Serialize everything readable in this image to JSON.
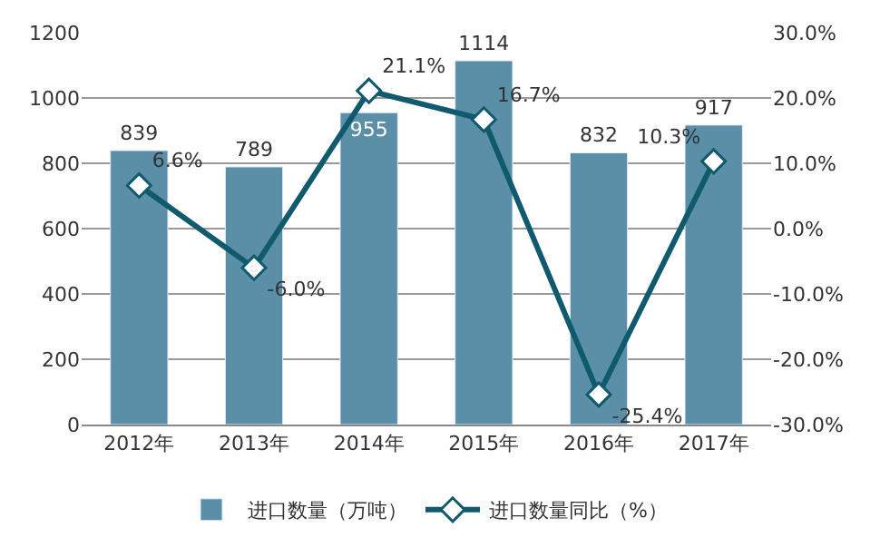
{
  "chart_data": {
    "type": "bar",
    "categories": [
      "2012年",
      "2013年",
      "2014年",
      "2015年",
      "2016年",
      "2017年"
    ],
    "series": [
      {
        "name": "进口数量（万吨）",
        "color": "#5b8fa8",
        "values": [
          839,
          789,
          955,
          1114,
          832,
          917
        ],
        "value_labels": [
          "839",
          "789",
          "955",
          "1114",
          "832",
          "917"
        ]
      },
      {
        "name": "进口数量同比（%）",
        "type": "line",
        "axis": "y2",
        "color": "#105a6e",
        "marker": "diamond",
        "values": [
          6.6,
          -6.0,
          21.1,
          16.7,
          -25.4,
          10.3
        ],
        "value_labels": [
          "6.6%",
          "-6.0%",
          "21.1%",
          "16.7%",
          "-25.4%",
          "10.3%"
        ]
      }
    ],
    "ylim": [
      0,
      1200
    ],
    "yticks": [
      0,
      200,
      400,
      600,
      800,
      1000,
      1200
    ],
    "y2lim": [
      -30,
      30
    ],
    "y2ticks": [
      {
        "value": -30,
        "label": "-30.0%"
      },
      {
        "value": -20,
        "label": "-20.0%"
      },
      {
        "value": -10,
        "label": "-10.0%"
      },
      {
        "value": 0,
        "label": "0.0%"
      },
      {
        "value": 10,
        "label": "10.0%"
      },
      {
        "value": 20,
        "label": "20.0%"
      },
      {
        "value": 30,
        "label": "30.0%"
      }
    ],
    "grid": "y",
    "legend": "bottom"
  }
}
